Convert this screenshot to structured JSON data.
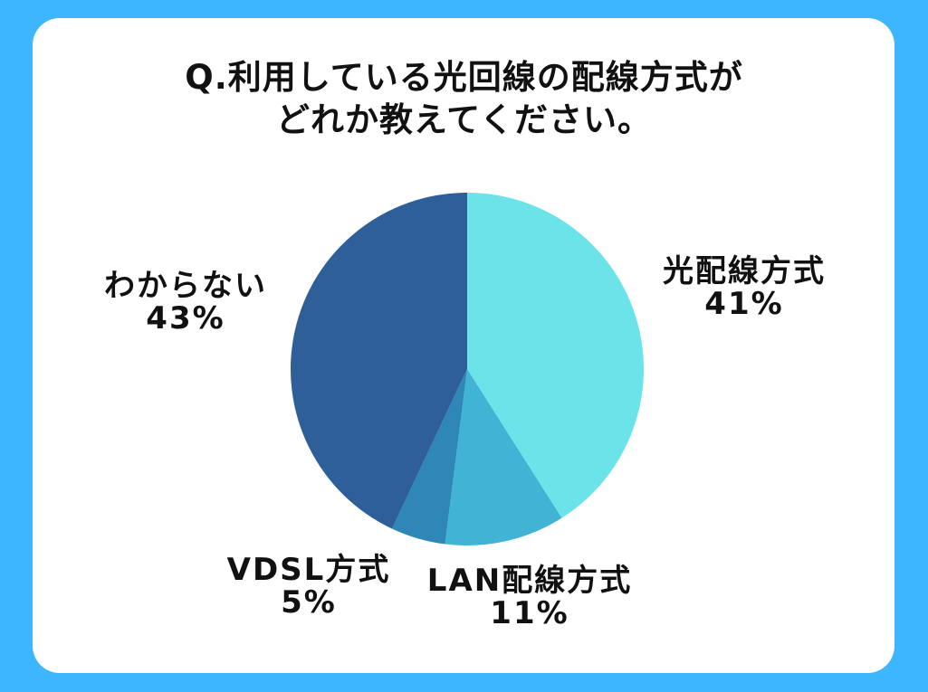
{
  "title": {
    "line1": "Q.利用している光回線の配線方式が",
    "line2": "どれか教えてください。"
  },
  "colors": {
    "background": "#3db5ff",
    "card": "#ffffff"
  },
  "chart_data": {
    "type": "pie",
    "title": "Q.利用している光回線の配線方式がどれか教えてください。",
    "unit": "%",
    "slices": [
      {
        "name": "光配線方式",
        "value": 41,
        "value_label": "41%",
        "color": "#6be3e8"
      },
      {
        "name": "LAN配線方式",
        "value": 11,
        "value_label": "11%",
        "color": "#41b4d6"
      },
      {
        "name": "VDSL方式",
        "value": 5,
        "value_label": "5%",
        "color": "#2e87b7"
      },
      {
        "name": "わからない",
        "value": 43,
        "value_label": "43%",
        "color": "#2f5f99"
      }
    ]
  }
}
